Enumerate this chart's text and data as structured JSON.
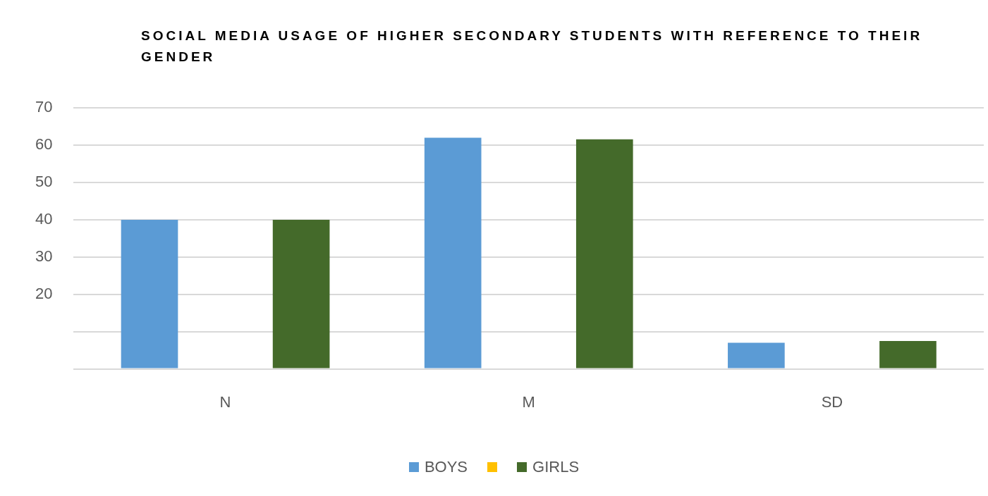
{
  "chart_data": {
    "type": "bar",
    "title": "SOCIAL MEDIA USAGE OF HIGHER SECONDARY STUDENTS WITH REFERENCE TO THEIR GENDER",
    "categories": [
      "N",
      "M",
      "SD"
    ],
    "series": [
      {
        "name": "BOYS",
        "color": "#5b9bd5",
        "values": [
          40,
          62,
          7
        ]
      },
      {
        "color": "#ffc000",
        "values": [
          null,
          null,
          null
        ]
      },
      {
        "name": "GIRLS",
        "color": "#446a2a",
        "values": [
          40,
          61.6,
          7.5
        ]
      }
    ],
    "ylim": [
      0,
      70
    ],
    "yticks": [
      {
        "value": 0,
        "label": null
      },
      {
        "value": 10,
        "label": null
      },
      20,
      30,
      40,
      50,
      60,
      70
    ],
    "grid": "y",
    "legend": "bottom"
  }
}
